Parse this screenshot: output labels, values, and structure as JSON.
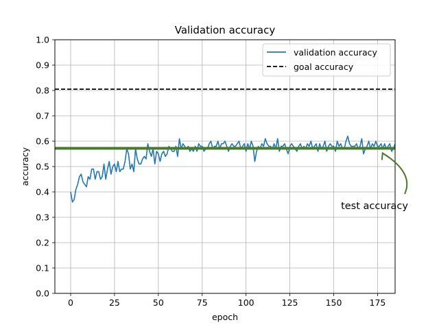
{
  "chart_data": {
    "type": "line",
    "title": "Validation accuracy",
    "xlabel": "epoch",
    "ylabel": "accuracy",
    "xlim": [
      -9,
      185
    ],
    "ylim": [
      0.0,
      1.0
    ],
    "xticks": [
      0,
      25,
      50,
      75,
      100,
      125,
      150,
      175
    ],
    "yticks": [
      0.0,
      0.1,
      0.2,
      0.3,
      0.4,
      0.5,
      0.6,
      0.7,
      0.8,
      0.9,
      1.0
    ],
    "xtick_labels": [
      "0",
      "25",
      "50",
      "75",
      "100",
      "125",
      "150",
      "175"
    ],
    "ytick_labels": [
      "0.0",
      "0.1",
      "0.2",
      "0.3",
      "0.4",
      "0.5",
      "0.6",
      "0.7",
      "0.8",
      "0.9",
      "1.0"
    ],
    "grid": true,
    "legend_position": "top-right",
    "series": [
      {
        "name": "validation accuracy",
        "color": "#1f77b4",
        "style": "solid",
        "x_start": 0,
        "x_step": 1,
        "values": [
          0.4,
          0.36,
          0.37,
          0.41,
          0.43,
          0.46,
          0.47,
          0.44,
          0.43,
          0.42,
          0.46,
          0.45,
          0.49,
          0.49,
          0.45,
          0.48,
          0.48,
          0.45,
          0.46,
          0.51,
          0.45,
          0.49,
          0.52,
          0.47,
          0.5,
          0.51,
          0.48,
          0.52,
          0.48,
          0.49,
          0.49,
          0.52,
          0.57,
          0.55,
          0.49,
          0.51,
          0.48,
          0.57,
          0.53,
          0.51,
          0.51,
          0.53,
          0.54,
          0.53,
          0.59,
          0.56,
          0.54,
          0.57,
          0.51,
          0.56,
          0.55,
          0.52,
          0.55,
          0.56,
          0.54,
          0.55,
          0.58,
          0.57,
          0.56,
          0.56,
          0.58,
          0.54,
          0.61,
          0.57,
          0.59,
          0.58,
          0.57,
          0.58,
          0.56,
          0.57,
          0.56,
          0.58,
          0.56,
          0.59,
          0.58,
          0.58,
          0.56,
          0.57,
          0.57,
          0.59,
          0.6,
          0.57,
          0.58,
          0.58,
          0.6,
          0.57,
          0.59,
          0.59,
          0.6,
          0.58,
          0.56,
          0.58,
          0.59,
          0.58,
          0.58,
          0.59,
          0.6,
          0.57,
          0.58,
          0.59,
          0.56,
          0.59,
          0.57,
          0.6,
          0.58,
          0.52,
          0.56,
          0.58,
          0.57,
          0.59,
          0.58,
          0.61,
          0.59,
          0.58,
          0.58,
          0.57,
          0.59,
          0.57,
          0.61,
          0.56,
          0.58,
          0.58,
          0.59,
          0.57,
          0.55,
          0.58,
          0.59,
          0.58,
          0.57,
          0.56,
          0.58,
          0.59,
          0.57,
          0.58,
          0.57,
          0.59,
          0.58,
          0.6,
          0.57,
          0.58,
          0.59,
          0.56,
          0.59,
          0.57,
          0.58,
          0.6,
          0.56,
          0.58,
          0.59,
          0.58,
          0.58,
          0.56,
          0.6,
          0.58,
          0.59,
          0.57,
          0.57,
          0.6,
          0.62,
          0.59,
          0.58,
          0.58,
          0.58,
          0.59,
          0.57,
          0.58,
          0.61,
          0.55,
          0.57,
          0.58,
          0.6,
          0.57,
          0.59,
          0.58,
          0.6,
          0.58,
          0.58,
          0.59,
          0.57,
          0.59,
          0.57,
          0.58,
          0.59,
          0.56,
          0.57,
          0.59
        ]
      },
      {
        "name": "goal accuracy",
        "color": "#000000",
        "style": "dashed",
        "y": 0.805
      }
    ],
    "reference_line": {
      "color": "#4a7a2a",
      "y": 0.572
    },
    "annotation": {
      "text": "test accuracy",
      "color": "#4a7a2a",
      "arrow_tip": [
        181,
        0.572
      ],
      "text_anchor": [
        179,
        0.35
      ]
    }
  }
}
